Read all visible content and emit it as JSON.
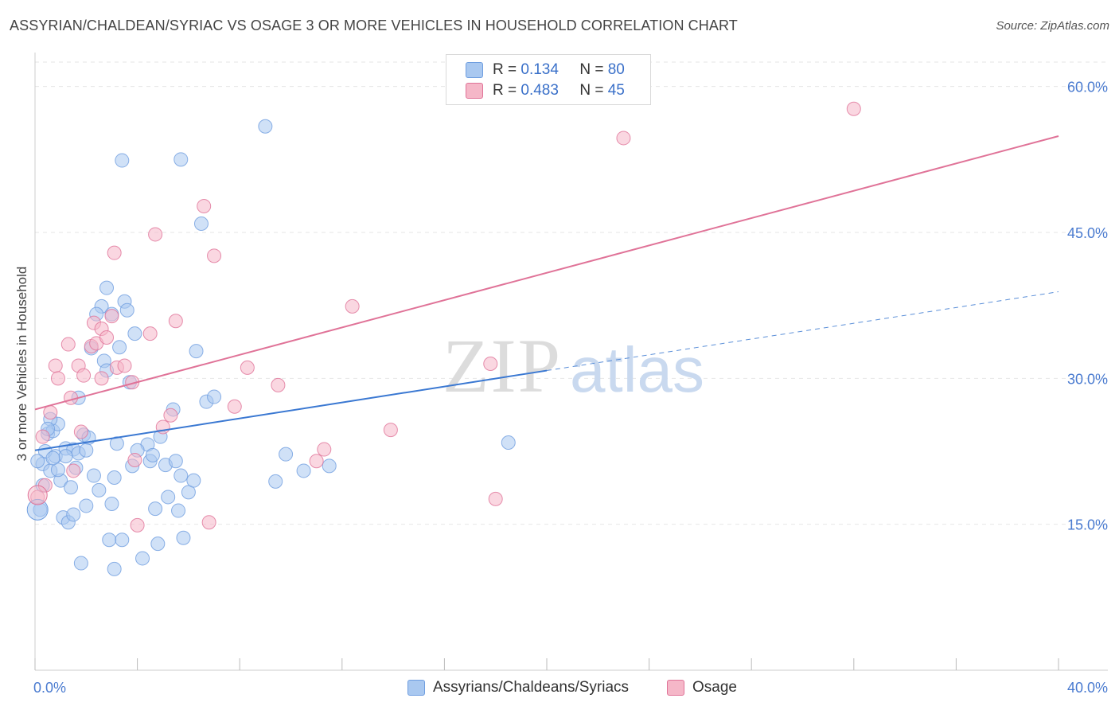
{
  "title": "ASSYRIAN/CHALDEAN/SYRIAC VS OSAGE 3 OR MORE VEHICLES IN HOUSEHOLD CORRELATION CHART",
  "source": "Source: ZipAtlas.com",
  "watermark": {
    "zip": "ZIP",
    "atlas": "atlas"
  },
  "legend": {
    "rows": [
      {
        "r_label": "R =",
        "r_value": "0.134",
        "n_label": "N =",
        "n_value": "80",
        "color": "#a9c8f0"
      },
      {
        "r_label": "R =",
        "r_value": "0.483",
        "n_label": "N =",
        "n_value": "45",
        "color": "#f5b7c8"
      }
    ]
  },
  "bottom_legend": [
    "Assyrians/Chaldeans/Syriacs",
    "Osage"
  ],
  "chart_data": {
    "type": "scatter",
    "xlabel": "",
    "ylabel": "3 or more Vehicles in Household",
    "xlim": [
      0,
      40
    ],
    "ylim": [
      0,
      63
    ],
    "x_tick_labels": [
      "0.0%",
      "40.0%"
    ],
    "y_ticks": [
      15,
      30,
      45,
      60
    ],
    "y_tick_labels": [
      "15.0%",
      "30.0%",
      "45.0%",
      "60.0%"
    ],
    "grid": true,
    "series": [
      {
        "name": "Assyrians/Chaldeans/Syriacs",
        "color": "#6f9ee0",
        "fill": "#a9c8f0",
        "trend": {
          "x": [
            0,
            20
          ],
          "y": [
            22.6,
            30.8
          ],
          "dashed_extension": {
            "x": [
              20,
              40
            ],
            "y": [
              30.8,
              38.9
            ]
          }
        },
        "points": [
          [
            0.2,
            16.5
          ],
          [
            0.3,
            21.2
          ],
          [
            0.4,
            22.5
          ],
          [
            0.5,
            24.3
          ],
          [
            0.6,
            20.5
          ],
          [
            0.7,
            24.6
          ],
          [
            0.8,
            22.0
          ],
          [
            0.9,
            25.3
          ],
          [
            1.0,
            19.5
          ],
          [
            1.1,
            15.7
          ],
          [
            1.2,
            22.8
          ],
          [
            1.3,
            15.2
          ],
          [
            1.4,
            18.8
          ],
          [
            1.5,
            22.7
          ],
          [
            1.6,
            20.8
          ],
          [
            1.7,
            22.3
          ],
          [
            1.8,
            11.0
          ],
          [
            1.9,
            24.2
          ],
          [
            2.0,
            16.9
          ],
          [
            2.1,
            23.9
          ],
          [
            2.2,
            33.1
          ],
          [
            2.3,
            20.0
          ],
          [
            2.5,
            18.5
          ],
          [
            2.6,
            37.4
          ],
          [
            2.7,
            31.8
          ],
          [
            2.8,
            30.8
          ],
          [
            2.9,
            13.4
          ],
          [
            3.0,
            17.1
          ],
          [
            3.1,
            19.8
          ],
          [
            3.2,
            23.3
          ],
          [
            3.3,
            33.2
          ],
          [
            3.4,
            13.4
          ],
          [
            3.0,
            36.6
          ],
          [
            3.5,
            37.9
          ],
          [
            3.6,
            37.0
          ],
          [
            3.7,
            29.6
          ],
          [
            3.8,
            21.0
          ],
          [
            3.9,
            34.6
          ],
          [
            4.2,
            11.5
          ],
          [
            4.4,
            23.2
          ],
          [
            4.5,
            21.5
          ],
          [
            4.6,
            22.1
          ],
          [
            4.7,
            16.6
          ],
          [
            4.8,
            13.0
          ],
          [
            4.9,
            24.0
          ],
          [
            5.1,
            21.1
          ],
          [
            5.2,
            17.8
          ],
          [
            5.4,
            26.8
          ],
          [
            5.5,
            21.5
          ],
          [
            5.6,
            16.4
          ],
          [
            5.7,
            20.0
          ],
          [
            5.8,
            13.6
          ],
          [
            6.0,
            18.3
          ],
          [
            6.2,
            19.5
          ],
          [
            6.3,
            32.8
          ],
          [
            6.5,
            45.9
          ],
          [
            6.7,
            27.6
          ],
          [
            7.0,
            28.1
          ],
          [
            3.4,
            52.4
          ],
          [
            5.7,
            52.5
          ],
          [
            9.0,
            55.9
          ],
          [
            9.4,
            19.4
          ],
          [
            9.8,
            22.2
          ],
          [
            10.5,
            20.5
          ],
          [
            11.5,
            21.0
          ],
          [
            18.5,
            23.4
          ],
          [
            3.1,
            10.4
          ],
          [
            2.4,
            36.6
          ],
          [
            0.3,
            19.0
          ],
          [
            0.1,
            21.5
          ],
          [
            0.6,
            25.8
          ],
          [
            1.5,
            16.0
          ],
          [
            2.0,
            22.6
          ],
          [
            2.8,
            39.3
          ],
          [
            1.7,
            28.0
          ],
          [
            1.2,
            22.0
          ],
          [
            0.5,
            24.8
          ],
          [
            0.9,
            20.6
          ],
          [
            0.7,
            21.8
          ],
          [
            4.0,
            22.6
          ]
        ]
      },
      {
        "name": "Osage",
        "color": "#e07398",
        "fill": "#f5b7c8",
        "trend": {
          "x": [
            0,
            40
          ],
          "y": [
            26.8,
            54.9
          ]
        },
        "points": [
          [
            0.1,
            17.8
          ],
          [
            0.3,
            24.0
          ],
          [
            0.6,
            26.5
          ],
          [
            0.8,
            31.3
          ],
          [
            0.9,
            30.0
          ],
          [
            1.3,
            33.5
          ],
          [
            1.5,
            20.5
          ],
          [
            1.7,
            31.3
          ],
          [
            1.8,
            24.5
          ],
          [
            1.9,
            30.3
          ],
          [
            2.2,
            33.3
          ],
          [
            2.3,
            35.7
          ],
          [
            2.4,
            33.6
          ],
          [
            2.6,
            35.1
          ],
          [
            2.8,
            34.2
          ],
          [
            2.6,
            30.0
          ],
          [
            3.0,
            36.4
          ],
          [
            3.1,
            42.9
          ],
          [
            3.2,
            31.1
          ],
          [
            3.5,
            31.3
          ],
          [
            3.8,
            29.6
          ],
          [
            3.9,
            21.6
          ],
          [
            4.0,
            14.9
          ],
          [
            4.5,
            34.6
          ],
          [
            4.7,
            44.8
          ],
          [
            5.0,
            25.0
          ],
          [
            5.3,
            26.2
          ],
          [
            5.5,
            35.9
          ],
          [
            6.6,
            47.7
          ],
          [
            6.8,
            15.2
          ],
          [
            7.0,
            42.6
          ],
          [
            7.8,
            27.1
          ],
          [
            8.3,
            31.1
          ],
          [
            9.5,
            29.3
          ],
          [
            11.0,
            21.5
          ],
          [
            11.3,
            22.7
          ],
          [
            12.4,
            37.4
          ],
          [
            13.9,
            24.7
          ],
          [
            17.8,
            31.5
          ],
          [
            18.0,
            17.6
          ],
          [
            23.0,
            54.7
          ],
          [
            23.5,
            59.0
          ],
          [
            32.0,
            57.7
          ],
          [
            0.4,
            19.0
          ],
          [
            1.4,
            28.0
          ]
        ]
      }
    ]
  }
}
